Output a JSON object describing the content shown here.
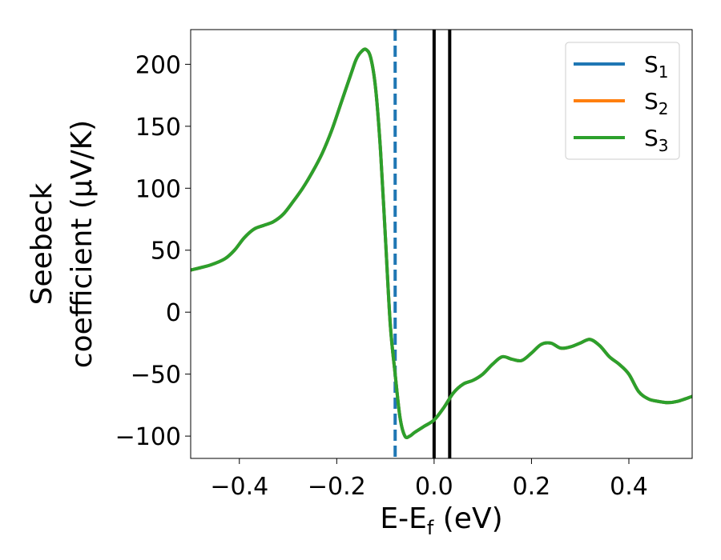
{
  "chart_data": {
    "type": "line",
    "xlabel": {
      "main": "E-E",
      "sub": "f",
      "tail": " (eV)"
    },
    "ylabel": {
      "line1": "Seebeck",
      "line2": "coefficient  (μV/K)"
    },
    "xlim": [
      -0.5,
      0.53
    ],
    "ylim": [
      -118,
      228
    ],
    "xticks": [
      -0.4,
      -0.2,
      0.0,
      0.2,
      0.4
    ],
    "xtick_labels": [
      "−0.4",
      "−0.2",
      "0.0",
      "0.2",
      "0.4"
    ],
    "yticks": [
      -100,
      -50,
      0,
      50,
      100,
      150,
      200
    ],
    "ytick_labels": [
      "−100",
      "−50",
      "0",
      "50",
      "100",
      "150",
      "200"
    ],
    "grid": false,
    "legend_position": "top-right",
    "vlines": [
      {
        "x": -0.08,
        "color": "#1f77b4",
        "style": "dashed"
      },
      {
        "x": 0.0,
        "color": "#000000",
        "style": "solid"
      },
      {
        "x": 0.032,
        "color": "#000000",
        "style": "solid"
      }
    ],
    "x": [
      -0.5,
      -0.46,
      -0.43,
      -0.41,
      -0.39,
      -0.37,
      -0.35,
      -0.33,
      -0.31,
      -0.29,
      -0.27,
      -0.25,
      -0.23,
      -0.21,
      -0.19,
      -0.17,
      -0.16,
      -0.15,
      -0.14,
      -0.13,
      -0.12,
      -0.11,
      -0.1,
      -0.09,
      -0.08,
      -0.07,
      -0.06,
      -0.05,
      -0.04,
      -0.02,
      0.0,
      0.02,
      0.04,
      0.06,
      0.08,
      0.1,
      0.12,
      0.14,
      0.16,
      0.18,
      0.2,
      0.22,
      0.24,
      0.26,
      0.28,
      0.3,
      0.32,
      0.34,
      0.36,
      0.38,
      0.4,
      0.42,
      0.44,
      0.46,
      0.48,
      0.5,
      0.53
    ],
    "series": [
      {
        "name": "S",
        "sub": "1",
        "color": "#1f77b4",
        "values": [
          34,
          38,
          43,
          50,
          60,
          67,
          70,
          73,
          79,
          89,
          100,
          113,
          128,
          147,
          170,
          193,
          204,
          210,
          212,
          205,
          180,
          130,
          60,
          -10,
          -50,
          -85,
          -100,
          -100,
          -97,
          -92,
          -87,
          -77,
          -65,
          -58,
          -55,
          -50,
          -42,
          -36,
          -38,
          -39,
          -33,
          -26,
          -25,
          -29,
          -28,
          -25,
          -22,
          -27,
          -36,
          -42,
          -50,
          -64,
          -70,
          -72,
          -73,
          -72,
          -68
        ]
      },
      {
        "name": "S",
        "sub": "2",
        "color": "#ff7f0e",
        "values": [
          34,
          38,
          43,
          50,
          60,
          67,
          70,
          73,
          79,
          89,
          100,
          113,
          128,
          147,
          170,
          193,
          204,
          210,
          212,
          205,
          180,
          130,
          60,
          -10,
          -50,
          -85,
          -100,
          -100,
          -97,
          -92,
          -87,
          -77,
          -65,
          -58,
          -55,
          -50,
          -42,
          -36,
          -38,
          -39,
          -33,
          -26,
          -25,
          -29,
          -28,
          -25,
          -22,
          -27,
          -36,
          -42,
          -50,
          -64,
          -70,
          -72,
          -73,
          -72,
          -68
        ]
      },
      {
        "name": "S",
        "sub": "3",
        "color": "#2ca02c",
        "values": [
          34,
          38,
          43,
          50,
          60,
          67,
          70,
          73,
          79,
          89,
          100,
          113,
          128,
          147,
          170,
          193,
          204,
          210,
          212,
          205,
          180,
          130,
          60,
          -10,
          -50,
          -85,
          -100,
          -100,
          -97,
          -92,
          -87,
          -77,
          -65,
          -58,
          -55,
          -50,
          -42,
          -36,
          -38,
          -39,
          -33,
          -26,
          -25,
          -29,
          -28,
          -25,
          -22,
          -27,
          -36,
          -42,
          -50,
          -64,
          -70,
          -72,
          -73,
          -72,
          -68
        ]
      }
    ]
  }
}
